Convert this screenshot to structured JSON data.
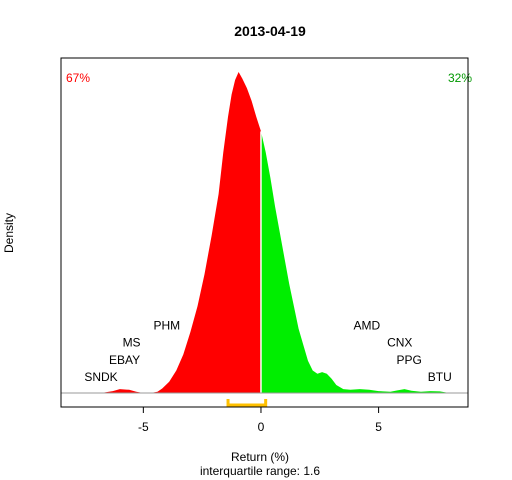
{
  "chart_data": {
    "type": "area",
    "title": "2013-04-19",
    "xlabel": "Return (%)",
    "subtitle": "interquartile range: 1.6",
    "ylabel": "Density",
    "xlim": [
      -8.5,
      8.8
    ],
    "ylim": [
      0,
      1
    ],
    "x_ticks": [
      -5,
      0,
      5
    ],
    "x_tick_labels": [
      "-5",
      "0",
      "5"
    ],
    "split_at": 0,
    "neg_color": "#ff0000",
    "pos_color": "#00ee00",
    "neg_share_label": "67%",
    "pos_share_label": "32%",
    "iqr": [
      -1.4,
      0.2
    ],
    "iqr_color": "#ffc000",
    "density": [
      [
        -7.2,
        0.0
      ],
      [
        -6.8,
        0.0
      ],
      [
        -6.3,
        0.006
      ],
      [
        -6.0,
        0.012
      ],
      [
        -5.6,
        0.01
      ],
      [
        -5.3,
        0.004
      ],
      [
        -5.0,
        0.0
      ],
      [
        -4.7,
        0.0
      ],
      [
        -4.4,
        0.004
      ],
      [
        -4.2,
        0.014
      ],
      [
        -3.9,
        0.035
      ],
      [
        -3.6,
        0.07
      ],
      [
        -3.3,
        0.12
      ],
      [
        -3.0,
        0.19
      ],
      [
        -2.7,
        0.27
      ],
      [
        -2.4,
        0.37
      ],
      [
        -2.1,
        0.49
      ],
      [
        -1.8,
        0.62
      ],
      [
        -1.6,
        0.75
      ],
      [
        -1.4,
        0.86
      ],
      [
        -1.25,
        0.93
      ],
      [
        -1.1,
        0.975
      ],
      [
        -0.95,
        1.0
      ],
      [
        -0.8,
        0.98
      ],
      [
        -0.6,
        0.95
      ],
      [
        -0.4,
        0.91
      ],
      [
        -0.2,
        0.86
      ],
      [
        0.0,
        0.815
      ],
      [
        0.2,
        0.75
      ],
      [
        0.4,
        0.67
      ],
      [
        0.6,
        0.58
      ],
      [
        0.8,
        0.5
      ],
      [
        1.0,
        0.42
      ],
      [
        1.2,
        0.34
      ],
      [
        1.4,
        0.27
      ],
      [
        1.6,
        0.2
      ],
      [
        1.8,
        0.15
      ],
      [
        2.0,
        0.1
      ],
      [
        2.2,
        0.07
      ],
      [
        2.4,
        0.06
      ],
      [
        2.6,
        0.065
      ],
      [
        2.8,
        0.06
      ],
      [
        3.0,
        0.045
      ],
      [
        3.2,
        0.025
      ],
      [
        3.5,
        0.012
      ],
      [
        3.8,
        0.01
      ],
      [
        4.2,
        0.012
      ],
      [
        4.6,
        0.01
      ],
      [
        5.0,
        0.006
      ],
      [
        5.5,
        0.004
      ],
      [
        5.8,
        0.008
      ],
      [
        6.1,
        0.012
      ],
      [
        6.4,
        0.007
      ],
      [
        6.8,
        0.004
      ],
      [
        7.2,
        0.006
      ],
      [
        7.6,
        0.005
      ],
      [
        8.0,
        0.0
      ]
    ],
    "annotations": [
      {
        "text": "SNDK",
        "x": -6.8,
        "y": 0.05
      },
      {
        "text": "EBAY",
        "x": -5.8,
        "y": 0.103
      },
      {
        "text": "MS",
        "x": -5.5,
        "y": 0.157
      },
      {
        "text": "PHM",
        "x": -4.0,
        "y": 0.211
      },
      {
        "text": "AMD",
        "x": 4.5,
        "y": 0.211
      },
      {
        "text": "CNX",
        "x": 5.9,
        "y": 0.157
      },
      {
        "text": "PPG",
        "x": 6.3,
        "y": 0.103
      },
      {
        "text": "BTU",
        "x": 7.6,
        "y": 0.05
      }
    ]
  }
}
